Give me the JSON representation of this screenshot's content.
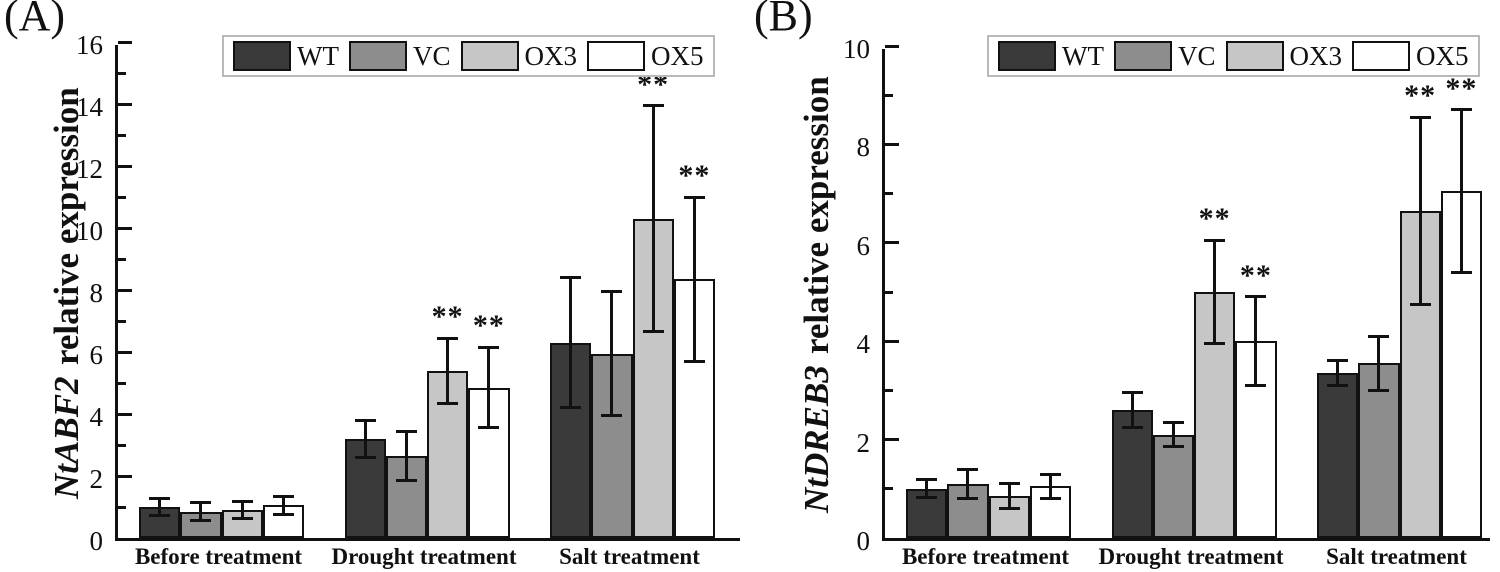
{
  "chart_data": [
    {
      "type": "bar",
      "panel_label": "(A)",
      "title": "",
      "xlabel": "",
      "ylabel": "NtABF2 relative expression",
      "ylabel_gene": "NtABF2",
      "ylabel_text": "relative expression",
      "ylim": [
        0,
        16
      ],
      "yticks": [
        0,
        2,
        4,
        6,
        8,
        10,
        12,
        14,
        16
      ],
      "ytick_minor_step": 1,
      "grid": false,
      "legend_position": "top-center",
      "error_bars": true,
      "categories": [
        "Before treatment",
        "Drought treatment",
        "Salt treatment"
      ],
      "series": [
        {
          "name": "WT",
          "fill": "#3a3a3a",
          "values": [
            1.0,
            3.2,
            6.3
          ],
          "errors": [
            0.26,
            0.6,
            2.1
          ],
          "significance": [
            "",
            "",
            ""
          ]
        },
        {
          "name": "VC",
          "fill": "#8d8d8d",
          "values": [
            0.85,
            2.65,
            5.95
          ],
          "errors": [
            0.28,
            0.8,
            2.0
          ],
          "significance": [
            "",
            "",
            ""
          ]
        },
        {
          "name": "OX3",
          "fill": "#c6c6c6",
          "values": [
            0.9,
            5.4,
            10.3
          ],
          "errors": [
            0.28,
            1.05,
            3.65
          ],
          "significance": [
            "",
            "**",
            "**"
          ]
        },
        {
          "name": "OX5",
          "fill": "#ffffff",
          "values": [
            1.05,
            4.85,
            8.35
          ],
          "errors": [
            0.3,
            1.3,
            2.65
          ],
          "significance": [
            "",
            "**",
            "**"
          ]
        }
      ]
    },
    {
      "type": "bar",
      "panel_label": "(B)",
      "title": "",
      "xlabel": "",
      "ylabel": "NtDREB3 relative expression",
      "ylabel_gene": "NtDREB3",
      "ylabel_text": "relative expression",
      "ylim": [
        0,
        10
      ],
      "yticks": [
        0,
        2,
        4,
        6,
        8,
        10
      ],
      "ytick_minor_step": 1,
      "grid": false,
      "legend_position": "top-center",
      "error_bars": true,
      "categories": [
        "Before treatment",
        "Drought treatment",
        "Salt treatment"
      ],
      "series": [
        {
          "name": "WT",
          "fill": "#3a3a3a",
          "values": [
            1.0,
            2.6,
            3.35
          ],
          "errors": [
            0.18,
            0.35,
            0.25
          ],
          "significance": [
            "",
            "",
            ""
          ]
        },
        {
          "name": "VC",
          "fill": "#8d8d8d",
          "values": [
            1.1,
            2.1,
            3.55
          ],
          "errors": [
            0.3,
            0.25,
            0.55
          ],
          "significance": [
            "",
            "",
            ""
          ]
        },
        {
          "name": "OX3",
          "fill": "#c6c6c6",
          "values": [
            0.85,
            5.0,
            6.65
          ],
          "errors": [
            0.26,
            1.05,
            1.9
          ],
          "significance": [
            "",
            "**",
            "**"
          ]
        },
        {
          "name": "OX5",
          "fill": "#ffffff",
          "values": [
            1.05,
            4.0,
            7.05
          ],
          "errors": [
            0.24,
            0.9,
            1.65
          ],
          "significance": [
            "",
            "**",
            "**"
          ]
        }
      ]
    }
  ]
}
